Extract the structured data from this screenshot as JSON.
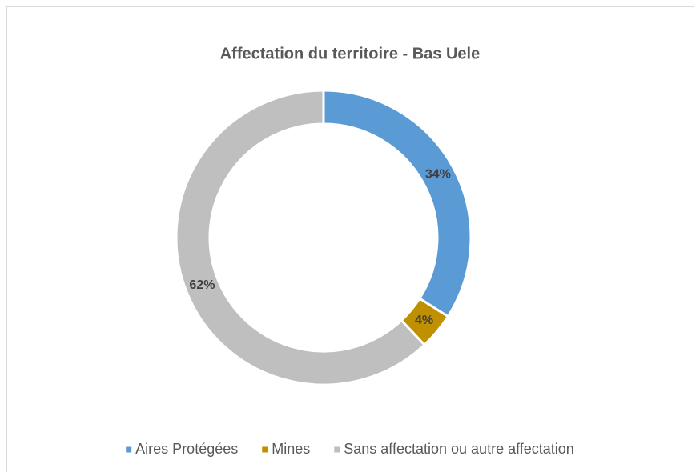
{
  "chart_data": {
    "type": "donut",
    "title": "Affectation du territoire - Bas Uele",
    "categories": [
      "Aires Protégées",
      "Mines",
      "Sans affectation ou autre affectation"
    ],
    "values": [
      34,
      4,
      62
    ],
    "value_labels": [
      "34%",
      "4%",
      "62%"
    ],
    "colors": [
      "#5b9bd5",
      "#bf9000",
      "#bfbfbf"
    ],
    "legend": "bottom"
  }
}
